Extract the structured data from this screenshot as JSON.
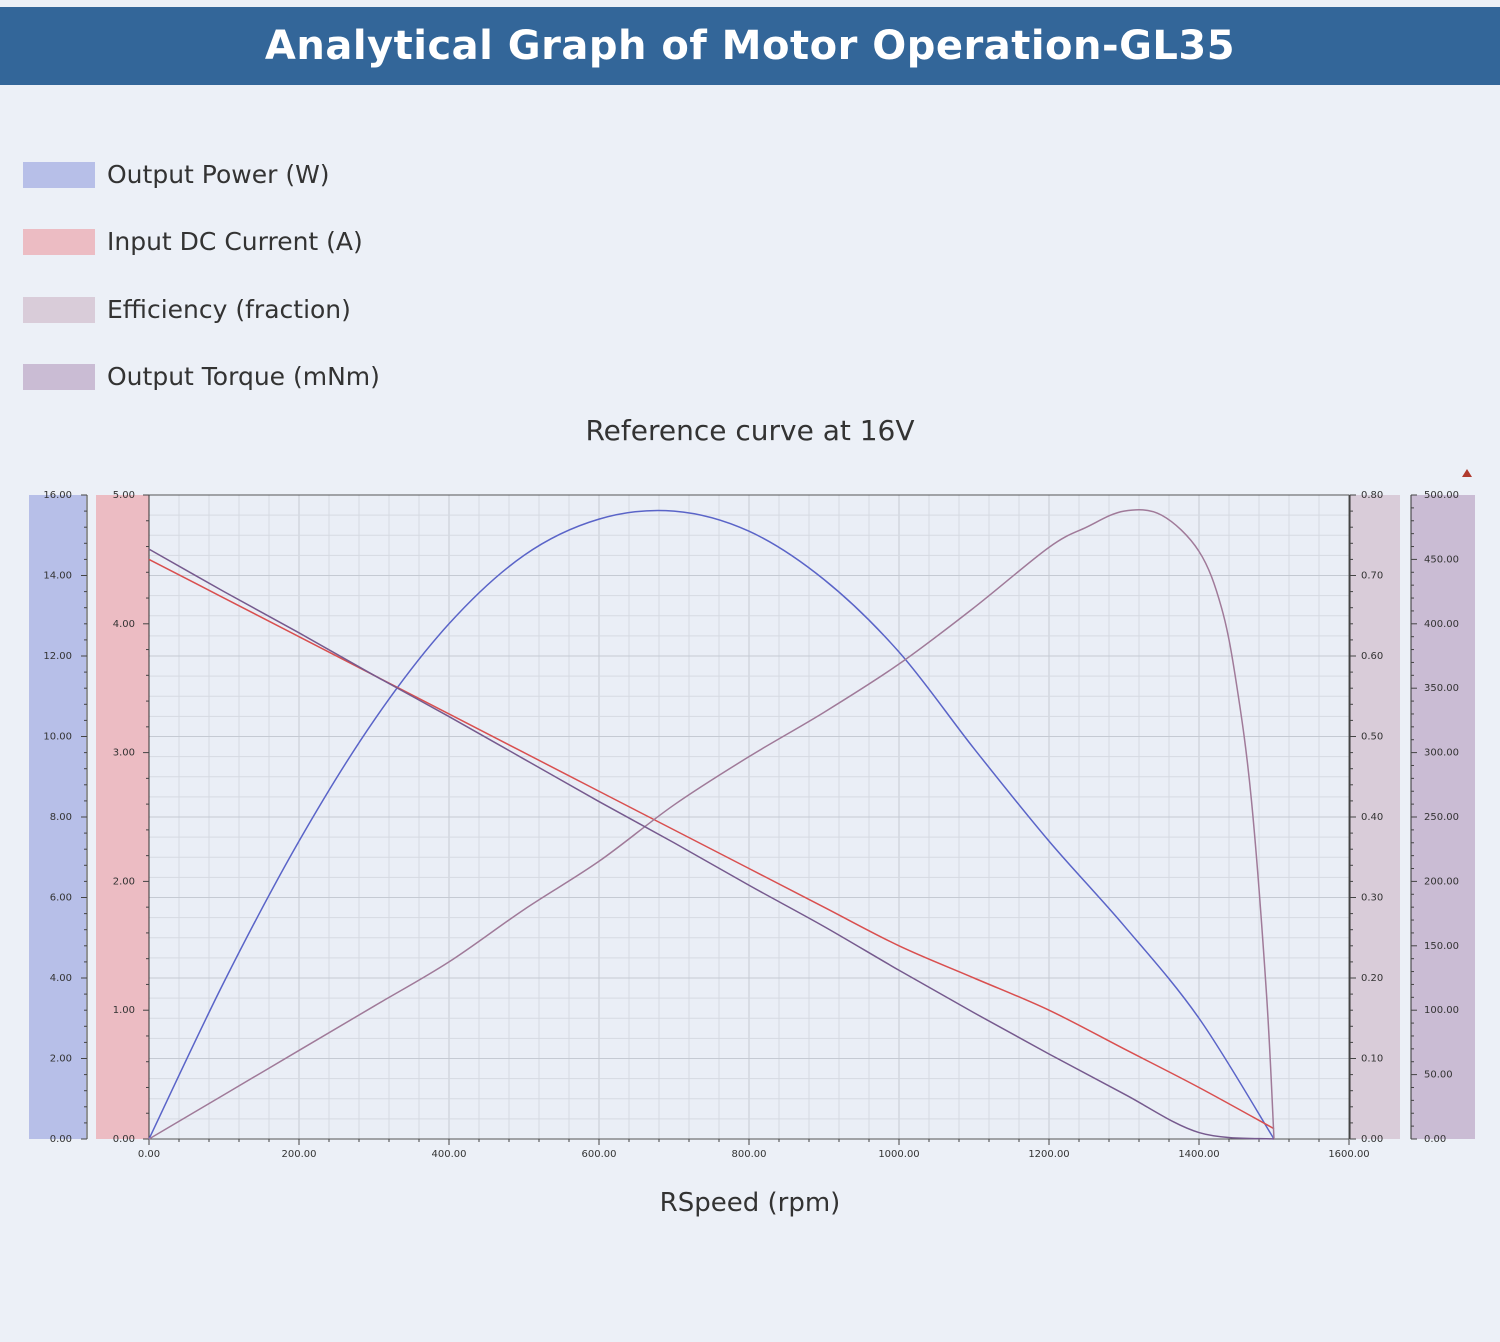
{
  "header": {
    "title": "Analytical Graph of Motor Operation-GL35"
  },
  "legend": [
    {
      "label": "Output Power (W)",
      "color": "#b7bfe8"
    },
    {
      "label": "Input DC Current (A)",
      "color": "#ecbcc3"
    },
    {
      "label": "Efficiency (fraction)",
      "color": "#d9ccd9"
    },
    {
      "label": "Output Torque (mNm)",
      "color": "#cabcd4"
    }
  ],
  "chart_data": {
    "type": "line",
    "title": "",
    "subtitle": "Reference curve at 16V",
    "xlabel": "RSpeed (rpm)",
    "xlim": [
      0,
      1600
    ],
    "x_ticks": [
      "0.00",
      "200.00",
      "400.00",
      "600.00",
      "800.00",
      "1000.00",
      "1200.00",
      "1400.00",
      "1600.00"
    ],
    "grid": true,
    "axes": [
      {
        "id": "power",
        "side": "left-outer",
        "range": [
          0,
          16
        ],
        "ticks": [
          "0.00",
          "2.00",
          "4.00",
          "6.00",
          "8.00",
          "10.00",
          "12.00",
          "14.00",
          "16.00"
        ],
        "band_color": "#b7bfe8"
      },
      {
        "id": "current",
        "side": "left-inner",
        "range": [
          0,
          5
        ],
        "ticks": [
          "0.00",
          "1.00",
          "2.00",
          "3.00",
          "4.00",
          "5.00"
        ],
        "band_color": "#ecbcc3"
      },
      {
        "id": "efficiency",
        "side": "right-inner",
        "range": [
          0,
          0.8
        ],
        "ticks": [
          "0.00",
          "0.10",
          "0.20",
          "0.30",
          "0.40",
          "0.50",
          "0.60",
          "0.70",
          "0.80"
        ],
        "band_color": "#d9ccd9"
      },
      {
        "id": "torque",
        "side": "right-outer",
        "range": [
          0,
          500
        ],
        "ticks": [
          "0.00",
          "50.00",
          "100.00",
          "150.00",
          "200.00",
          "250.00",
          "300.00",
          "350.00",
          "400.00",
          "450.00",
          "500.00"
        ],
        "band_color": "#cabcd4"
      }
    ],
    "series": [
      {
        "name": "Output Power (W)",
        "axis": "power",
        "color": "#5a64c8",
        "x": [
          0,
          100,
          200,
          300,
          400,
          500,
          600,
          700,
          800,
          900,
          1000,
          1100,
          1200,
          1300,
          1400,
          1500
        ],
        "y": [
          0,
          3.9,
          7.4,
          10.4,
          12.8,
          14.5,
          15.4,
          15.6,
          15.1,
          13.9,
          12.1,
          9.7,
          7.4,
          5.3,
          3.0,
          0
        ]
      },
      {
        "name": "Input DC Current (A)",
        "axis": "current",
        "color": "#d94f4f",
        "x": [
          0,
          100,
          200,
          300,
          400,
          500,
          600,
          700,
          800,
          900,
          1000,
          1100,
          1200,
          1300,
          1400,
          1500
        ],
        "y": [
          4.5,
          4.2,
          3.9,
          3.6,
          3.3,
          3.0,
          2.7,
          2.4,
          2.1,
          1.8,
          1.5,
          1.25,
          1.0,
          0.7,
          0.4,
          0.08
        ]
      },
      {
        "name": "Efficiency (fraction)",
        "axis": "efficiency",
        "color": "#a07a99",
        "x": [
          0,
          100,
          200,
          300,
          400,
          500,
          600,
          700,
          800,
          900,
          1000,
          1100,
          1200,
          1250,
          1300,
          1350,
          1400,
          1430,
          1450,
          1470,
          1490,
          1500
        ],
        "y": [
          0,
          0.055,
          0.11,
          0.165,
          0.22,
          0.285,
          0.345,
          0.415,
          0.475,
          0.53,
          0.59,
          0.66,
          0.735,
          0.76,
          0.78,
          0.775,
          0.73,
          0.66,
          0.565,
          0.42,
          0.18,
          0
        ]
      },
      {
        "name": "Output Torque (mNm)",
        "axis": "torque",
        "color": "#765a8e",
        "x": [
          0,
          100,
          200,
          300,
          400,
          500,
          600,
          700,
          800,
          900,
          1000,
          1100,
          1200,
          1300,
          1400,
          1500
        ],
        "y": [
          458,
          425,
          393,
          360,
          328,
          295,
          262,
          230,
          197,
          165,
          131,
          98,
          66,
          35,
          5,
          0
        ]
      }
    ]
  }
}
